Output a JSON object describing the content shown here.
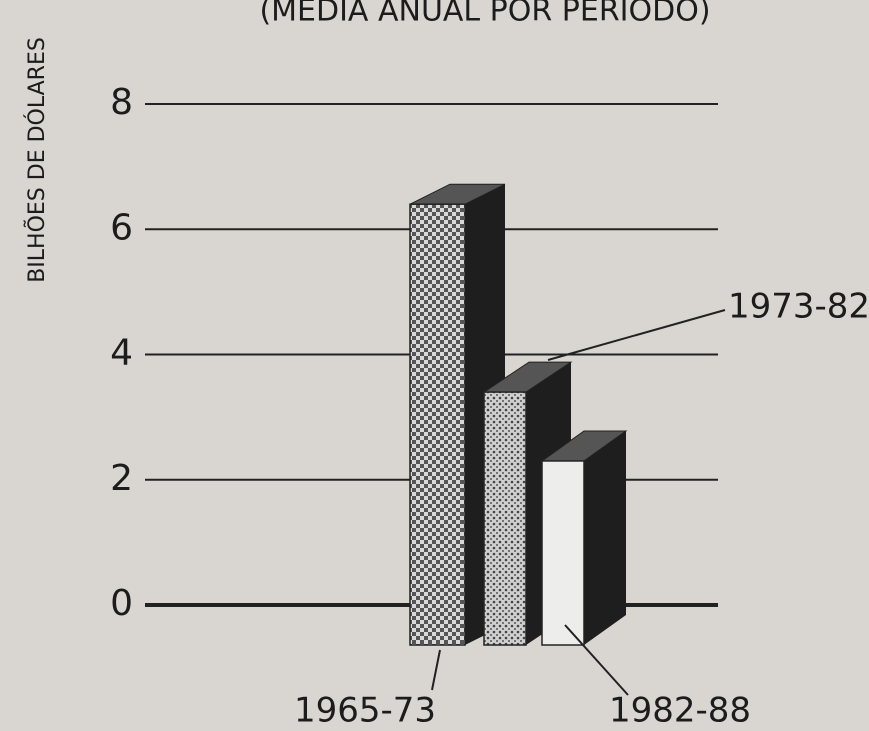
{
  "chart_data": {
    "type": "bar",
    "title": "(MÉDIA ANUAL POR PERÍODO)",
    "y_label": "BILHÕES DE DÓLARES",
    "categories": [
      "1965-73",
      "1973-82",
      "1982-88"
    ],
    "values": [
      6.4,
      3.4,
      2.3
    ],
    "color": "#1e1e1e",
    "ylim": [
      0,
      8
    ],
    "yticks": [
      0,
      2,
      4,
      6,
      8
    ],
    "grid": true
  }
}
